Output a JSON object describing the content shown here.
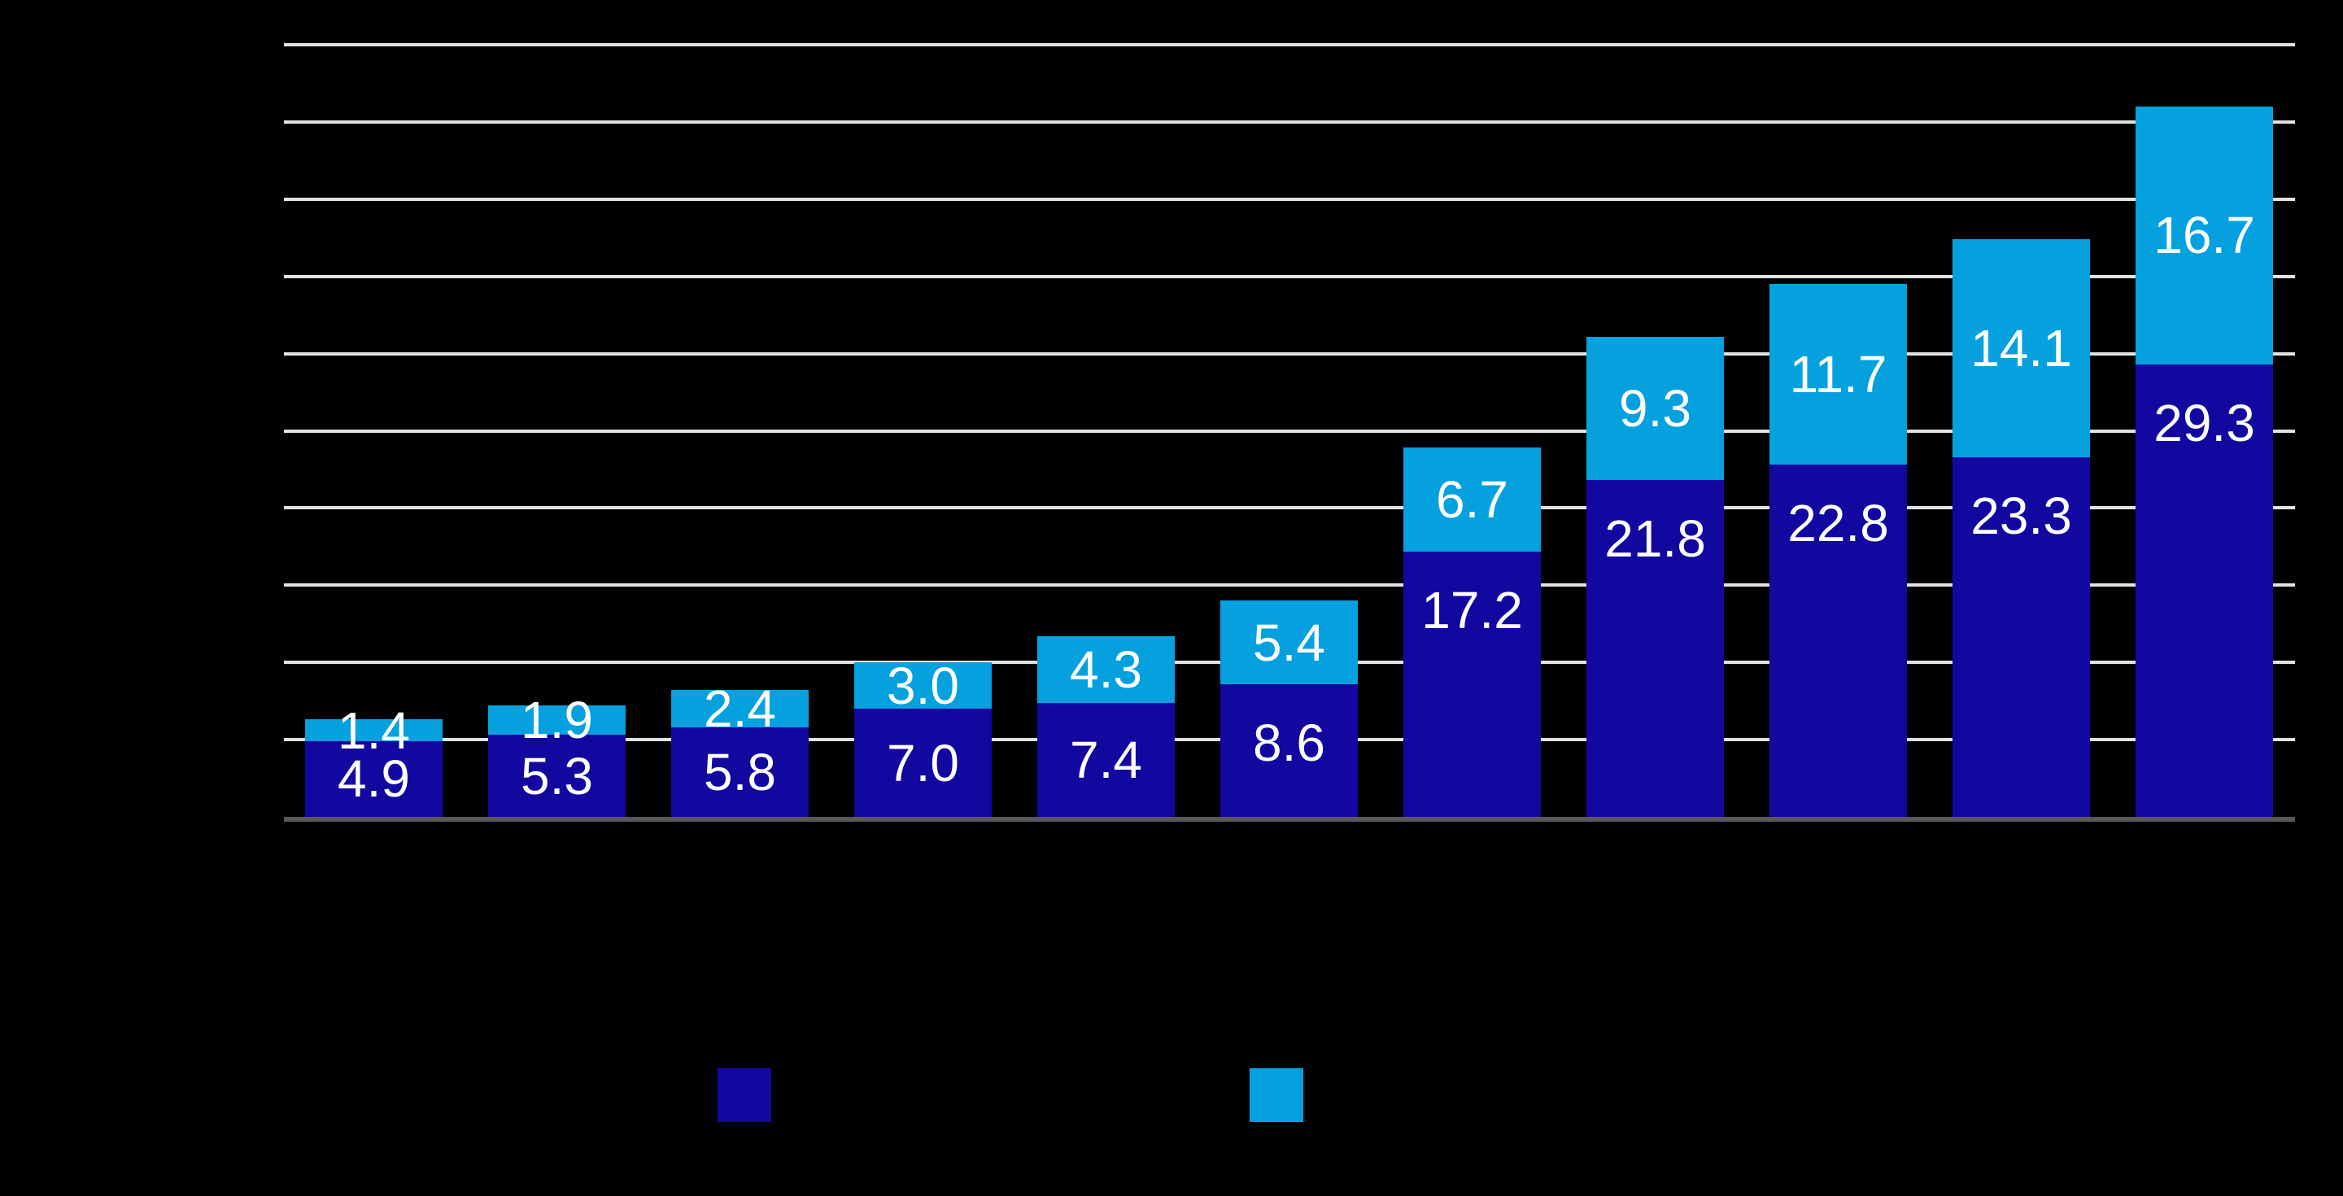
{
  "chart_data": {
    "type": "bar",
    "stacked": true,
    "title": "",
    "title_visible": false,
    "categories": [
      "",
      "",
      "",
      "",
      "",
      "",
      "",
      "",
      "",
      "",
      ""
    ],
    "category_labels_visible": false,
    "series": [
      {
        "id": "dark-blue",
        "name_visible": false,
        "color": "#1208A0",
        "values": [
          4.9,
          5.3,
          5.8,
          7.0,
          7.4,
          8.6,
          17.2,
          21.8,
          22.8,
          23.3,
          29.3
        ],
        "labels": [
          "4.9",
          "5.3",
          "5.8",
          "7.0",
          "7.4",
          "8.6",
          "17.2",
          "21.8",
          "22.8",
          "23.3",
          "29.3"
        ]
      },
      {
        "id": "light-blue",
        "name_visible": false,
        "color": "#05A1DE",
        "values": [
          1.4,
          1.9,
          2.4,
          3.0,
          4.3,
          5.4,
          6.7,
          9.3,
          11.7,
          14.1,
          16.7
        ],
        "labels": [
          "1.4",
          "1.9",
          "2.4",
          "3.0",
          "4.3",
          "5.4",
          "6.7",
          "9.3",
          "11.7",
          "14.1",
          "16.7"
        ]
      }
    ],
    "totals": [
      6.3,
      7.2,
      8.2,
      10.0,
      11.7,
      14.0,
      23.9,
      31.1,
      34.5,
      37.4,
      46.0
    ],
    "ylim": [
      0,
      50
    ],
    "ytick_step": 5,
    "ytick_labels_visible": false,
    "grid": "horizontal",
    "legend_position": "bottom-center",
    "legend_labels_visible": false
  },
  "legend": {
    "swatches": [
      {
        "id": "dark-blue",
        "color": "#1208A0"
      },
      {
        "id": "light-blue",
        "color": "#05A1DE"
      }
    ]
  },
  "colors": {
    "background": "#000000",
    "gridline": "#E2E2E2",
    "axis_line": "#58585A",
    "bar_label_text": "#FFFFFF",
    "series_dark": "#1208A0",
    "series_light": "#05A1DE"
  }
}
